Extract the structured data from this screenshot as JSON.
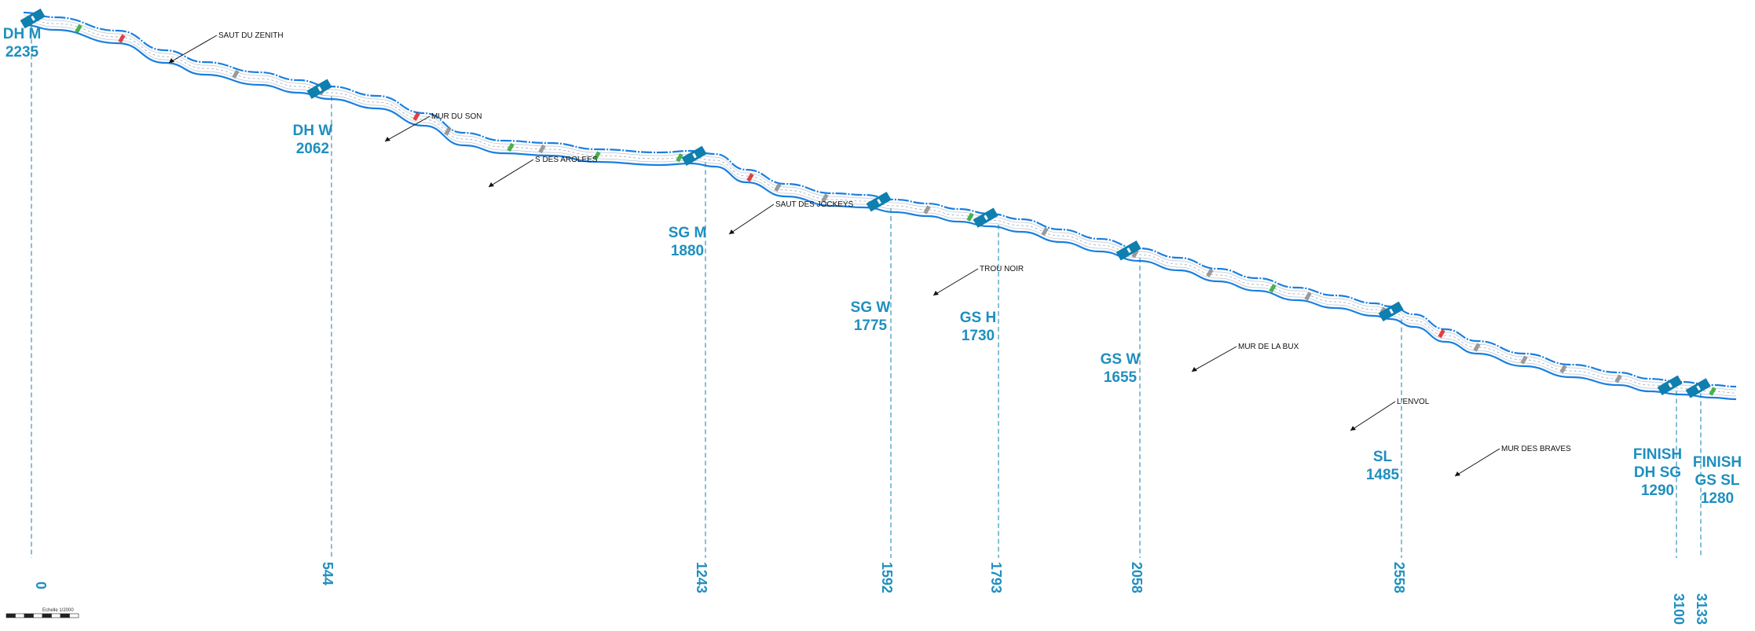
{
  "colors": {
    "course": "#1a7fe0",
    "gate": "#0e7fae",
    "label": "#1f8fbf",
    "fence": "#333333",
    "slope_red": "#e02020",
    "slope_green": "#2aa52a",
    "slope_grey": "#8a8a8a"
  },
  "gates": [
    {
      "id": "dh-m",
      "line1": "DH M",
      "line2": "2235",
      "distance": "0"
    },
    {
      "id": "dh-w",
      "line1": "DH W",
      "line2": "2062",
      "distance": "544"
    },
    {
      "id": "sg-m",
      "line1": "SG M",
      "line2": "1880",
      "distance": "1243"
    },
    {
      "id": "sg-w",
      "line1": "SG W",
      "line2": "1775",
      "distance": "1592"
    },
    {
      "id": "gs-h",
      "line1": "GS H",
      "line2": "1730",
      "distance": "1793"
    },
    {
      "id": "gs-w",
      "line1": "GS W",
      "line2": "1655",
      "distance": "2058"
    },
    {
      "id": "sl",
      "line1": "SL",
      "line2": "1485",
      "distance": "2558"
    },
    {
      "id": "finish-dh-sg",
      "line1": "FINISH",
      "line1b": "DH SG",
      "line2": "1290",
      "distance": "3100"
    },
    {
      "id": "finish-gs-sl",
      "line1": "FINISH",
      "line1b": "GS SL",
      "line2": "1280",
      "distance": "3133"
    }
  ],
  "sections": [
    {
      "id": "saut-du-zenith",
      "name": "SAUT DU ZENITH"
    },
    {
      "id": "mur-du-son",
      "name": "MUR DU SON"
    },
    {
      "id": "s-des-arolees",
      "name": "S DES AROLEES"
    },
    {
      "id": "saut-des-jockeys",
      "name": "SAUT DES JOCKEYS"
    },
    {
      "id": "trou-noir",
      "name": "TROU NOIR"
    },
    {
      "id": "mur-de-la-bux",
      "name": "MUR DE LA BUX"
    },
    {
      "id": "l-envol",
      "name": "L'ENVOL"
    },
    {
      "id": "mur-des-braves",
      "name": "MUR DES BRAVES"
    }
  ],
  "scale": {
    "title": "Echelle 1/2000"
  }
}
